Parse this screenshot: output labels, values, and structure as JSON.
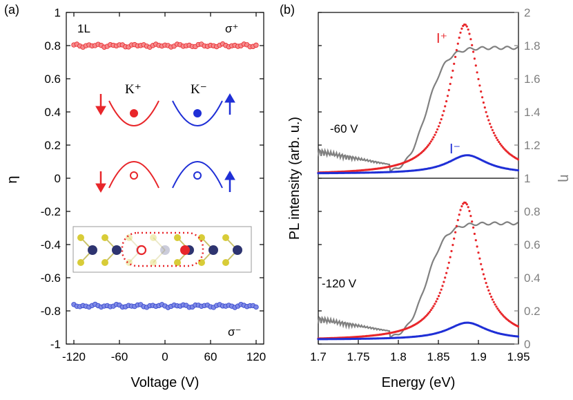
{
  "chart_data": [
    {
      "panel": "(a)",
      "type": "scatter",
      "title": "",
      "xlabel": "Voltage (V)",
      "ylabel": "η",
      "xlim": [
        -130,
        130
      ],
      "ylim": [
        -1,
        1
      ],
      "xticks": [
        -120,
        -60,
        0,
        60,
        120
      ],
      "xtick_labels": [
        "-120",
        "-60",
        "0",
        "60",
        "120"
      ],
      "yticks": [
        -1,
        -0.8,
        -0.6,
        -0.4,
        -0.2,
        0,
        0.2,
        0.4,
        0.6,
        0.8,
        1
      ],
      "ytick_labels": [
        "-1",
        "-0.8",
        "-0.6",
        "-0.4",
        "-0.2",
        "0",
        "0.2",
        "0.4",
        "0.6",
        "0.8",
        "1"
      ],
      "annotations": {
        "layer": "1L",
        "sigma_plus": "σ⁺",
        "sigma_minus": "σ⁻"
      },
      "series": [
        {
          "name": "σ⁺",
          "color": "#e8262a",
          "fill": "#f58a8c",
          "y_level": 0.8
        },
        {
          "name": "σ⁻",
          "color": "#3344cc",
          "fill": "#7f8ae6",
          "y_level": -0.77
        }
      ],
      "x_range": [
        -120,
        120
      ],
      "inset": {
        "valley_plus": "K⁺",
        "valley_minus": "K⁻"
      }
    },
    {
      "panel": "(b)",
      "type": "line",
      "title": "",
      "xlabel": "Energy (eV)",
      "ylabel_left": "PL intensity (arb. u.)",
      "ylabel_right": "η",
      "xlim": [
        1.7,
        1.95
      ],
      "xticks": [
        1.7,
        1.75,
        1.8,
        1.85,
        1.9,
        1.95
      ],
      "xtick_labels": [
        "1.7",
        "1.75",
        "1.8",
        "1.85",
        "1.9",
        "1.95"
      ],
      "right_ylim": [
        0,
        2
      ],
      "right_yticks": [
        0,
        0.2,
        0.4,
        0.6,
        0.8,
        1,
        1.2,
        1.4,
        1.6,
        1.8,
        2
      ],
      "right_ytick_labels": [
        "0",
        "0.2",
        "0.4",
        "0.6",
        "0.8",
        "1",
        "1.2",
        "1.4",
        "1.6",
        "1.8",
        "2"
      ],
      "annotations": {
        "top_voltage": "-60 V",
        "bottom_voltage": "-120 V",
        "I_plus": "I⁺",
        "I_minus": "I⁻"
      },
      "series": [
        {
          "name": "I⁺",
          "color": "#e8262a",
          "peak_energy": 1.883,
          "fwhm": 0.045
        },
        {
          "name": "I⁻",
          "color": "#1f2fd6",
          "peak_energy": 1.886,
          "fwhm": 0.06
        },
        {
          "name": "η",
          "color": "#808080",
          "plateau": 0.8
        }
      ]
    }
  ]
}
